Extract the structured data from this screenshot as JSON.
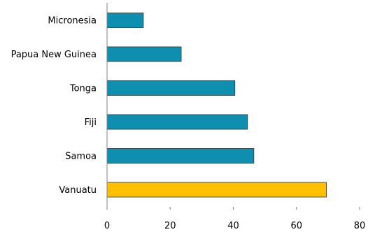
{
  "chart_data": {
    "type": "bar",
    "orientation": "horizontal",
    "categories": [
      "Micronesia",
      "Papua New Guinea",
      "Tonga",
      "Fiji",
      "Samoa",
      "Vanuatu"
    ],
    "values": [
      11.5,
      23.5,
      40.5,
      44.5,
      46.5,
      69.5
    ],
    "highlight": "Vanuatu",
    "xlim": [
      0,
      80
    ],
    "xticks": [
      0,
      20,
      40,
      60,
      80
    ],
    "title": "",
    "xlabel": "",
    "ylabel": "",
    "grid": false,
    "legend": "none",
    "colors": {
      "bar": "#0f8fb0",
      "highlight": "#ffc000",
      "bar_edge": "#333333",
      "axis": "#808080"
    }
  }
}
